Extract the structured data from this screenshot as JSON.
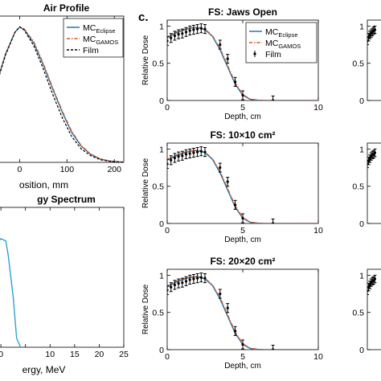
{
  "figure": {
    "panel_label": "c.",
    "colors": {
      "axis": "#000000",
      "eclipse": "#1f77b4",
      "gamos": "#d95319",
      "film": "#000000",
      "spectrum": "#2ea3d1"
    }
  },
  "chart_data": [
    {
      "id": "air-profile",
      "type": "line",
      "title": "Air Profile",
      "xlabel": "osition, mm",
      "ylabel": "",
      "xlim": [
        -50,
        220
      ],
      "ylim": [
        0,
        1.08
      ],
      "xticks": [
        0,
        100,
        200
      ],
      "xtick_labels": [
        "0",
        "100",
        "200"
      ],
      "legend": {
        "placement": "top-right",
        "entries": [
          "MC_Eclipse",
          "MC_GAMOS",
          "Film"
        ]
      },
      "series": [
        {
          "name": "MC_Eclipse",
          "style": "solid",
          "x": [
            -50,
            -30,
            -10,
            0,
            10,
            30,
            50,
            70,
            90,
            110,
            130,
            150,
            170,
            190,
            210,
            220
          ],
          "y": [
            0.57,
            0.8,
            0.96,
            1.0,
            0.98,
            0.88,
            0.72,
            0.54,
            0.37,
            0.22,
            0.12,
            0.06,
            0.025,
            0.01,
            0.004,
            0.002
          ]
        },
        {
          "name": "MC_GAMOS",
          "style": "dashdot",
          "x": [
            -50,
            -30,
            -10,
            0,
            10,
            30,
            50,
            70,
            90,
            110,
            130,
            150,
            170,
            190,
            210,
            220
          ],
          "y": [
            0.57,
            0.8,
            0.96,
            1.0,
            0.985,
            0.89,
            0.73,
            0.55,
            0.38,
            0.23,
            0.125,
            0.062,
            0.026,
            0.01,
            0.004,
            0.002
          ]
        },
        {
          "name": "Film",
          "style": "dashed",
          "x": [
            -50,
            -30,
            -10,
            0,
            10,
            30,
            50,
            70,
            90,
            110,
            130,
            150,
            170,
            190,
            210,
            220
          ],
          "y": [
            0.56,
            0.79,
            0.96,
            1.0,
            0.975,
            0.86,
            0.69,
            0.5,
            0.33,
            0.19,
            0.1,
            0.05,
            0.02,
            0.008,
            0.003,
            0.002
          ]
        }
      ]
    },
    {
      "id": "energy-spectrum",
      "type": "line",
      "title": "gy Spectrum",
      "xlabel": "ergy, MeV",
      "ylabel": "",
      "xlim": [
        -1,
        25
      ],
      "ylim": [
        0,
        1.25
      ],
      "xticks": [
        0,
        5,
        10,
        15,
        20,
        25
      ],
      "xtick_labels": [
        "0",
        "",
        "10",
        "15",
        "20",
        "25"
      ],
      "series": [
        {
          "name": "",
          "x": [
            -1,
            0,
            1,
            1.5,
            2.5,
            3.2,
            4.0
          ],
          "y": [
            0.92,
            0.97,
            0.95,
            0.82,
            0.45,
            0.08,
            0.0
          ]
        }
      ]
    },
    {
      "id": "fs-jaws-open",
      "type": "line",
      "title": "FS: Jaws Open",
      "xlabel": "Depth, cm",
      "ylabel": "Relative Dose",
      "xlim": [
        0,
        10
      ],
      "ylim": [
        0,
        1.08
      ],
      "xticks": [
        0,
        5,
        10
      ],
      "yticks": [
        0,
        0.5,
        1
      ],
      "ytick_labels": [
        "0",
        "0.5",
        "1"
      ],
      "legend": {
        "placement": "top-right",
        "entries": [
          "MC_Eclipse",
          "MC_GAMOS",
          "Film"
        ]
      },
      "series": [
        {
          "name": "MC_Eclipse",
          "x": [
            0,
            0.5,
            1,
            1.5,
            2,
            2.5,
            3,
            3.5,
            4,
            4.5,
            5,
            5.5,
            6,
            6.5,
            7,
            7.5,
            10
          ],
          "y": [
            0.84,
            0.9,
            0.94,
            0.97,
            0.98,
            0.95,
            0.86,
            0.68,
            0.45,
            0.22,
            0.07,
            0.015,
            0.004,
            0.001,
            0.0,
            0.0,
            0.0
          ]
        },
        {
          "name": "MC_GAMOS",
          "x": [
            0,
            0.5,
            1,
            1.5,
            2,
            2.5,
            3,
            3.5,
            4,
            4.5,
            5,
            5.5,
            6,
            6.5,
            7,
            7.5,
            10
          ],
          "y": [
            0.85,
            0.91,
            0.95,
            0.975,
            0.985,
            0.96,
            0.87,
            0.7,
            0.47,
            0.24,
            0.08,
            0.02,
            0.005,
            0.001,
            0.0,
            0.0,
            0.0
          ]
        },
        {
          "name": "Film",
          "x": [
            0,
            0.25,
            0.5,
            0.75,
            1,
            1.25,
            1.5,
            1.75,
            2,
            2.25,
            2.5,
            3.5,
            4,
            4.5,
            5,
            7
          ],
          "y": [
            0.8,
            0.84,
            0.87,
            0.89,
            0.9,
            0.92,
            0.94,
            0.95,
            0.96,
            0.97,
            0.96,
            0.75,
            0.56,
            0.25,
            0.07,
            0.0
          ],
          "err": 0.06
        }
      ]
    },
    {
      "id": "fs-10x10",
      "type": "line",
      "title": "FS: 10×10 cm²",
      "xlabel": "Depth, cm",
      "ylabel": "Relative Dose",
      "xlim": [
        0,
        10
      ],
      "ylim": [
        0,
        1.08
      ],
      "xticks": [
        0,
        5,
        10
      ],
      "yticks": [
        0,
        0.5,
        1
      ],
      "ytick_labels": [
        "0",
        "0.5",
        "1"
      ],
      "series": [
        {
          "name": "MC_Eclipse",
          "x": [
            0,
            0.5,
            1,
            1.5,
            2,
            2.5,
            3,
            3.5,
            4,
            4.5,
            5,
            5.5,
            6,
            6.5,
            7,
            10
          ],
          "y": [
            0.85,
            0.9,
            0.94,
            0.97,
            0.98,
            0.95,
            0.86,
            0.68,
            0.45,
            0.22,
            0.07,
            0.015,
            0.004,
            0.001,
            0.0,
            0.0
          ]
        },
        {
          "name": "MC_GAMOS",
          "x": [
            0,
            0.5,
            1,
            1.5,
            2,
            2.5,
            3,
            3.5,
            4,
            4.5,
            5,
            5.5,
            6,
            6.5,
            7,
            10
          ],
          "y": [
            0.86,
            0.91,
            0.95,
            0.975,
            0.985,
            0.96,
            0.87,
            0.7,
            0.47,
            0.24,
            0.08,
            0.02,
            0.005,
            0.001,
            0.0,
            0.0
          ]
        },
        {
          "name": "Film",
          "x": [
            0,
            0.25,
            0.5,
            0.75,
            1,
            1.25,
            1.5,
            1.75,
            2,
            2.25,
            2.5,
            3.5,
            4,
            4.5,
            5,
            7
          ],
          "y": [
            0.8,
            0.85,
            0.88,
            0.9,
            0.91,
            0.93,
            0.94,
            0.95,
            0.96,
            0.97,
            0.96,
            0.75,
            0.56,
            0.25,
            0.07,
            0.0
          ],
          "err": 0.06
        }
      ]
    },
    {
      "id": "fs-20x20",
      "type": "line",
      "title": "FS: 20×20 cm²",
      "xlabel": "Depth, cm",
      "ylabel": "Relative Dose",
      "xlim": [
        0,
        10
      ],
      "ylim": [
        0,
        1.08
      ],
      "xticks": [
        0,
        5,
        10
      ],
      "yticks": [
        0,
        0.5,
        1
      ],
      "ytick_labels": [
        "0",
        "0.5",
        "1"
      ],
      "series": [
        {
          "name": "MC_Eclipse",
          "x": [
            0,
            0.5,
            1,
            1.5,
            2,
            2.5,
            3,
            3.5,
            4,
            4.5,
            5,
            5.5,
            6,
            6.5,
            7,
            10
          ],
          "y": [
            0.84,
            0.9,
            0.94,
            0.97,
            0.98,
            0.95,
            0.86,
            0.68,
            0.45,
            0.22,
            0.07,
            0.015,
            0.004,
            0.001,
            0.0,
            0.0
          ]
        },
        {
          "name": "MC_GAMOS",
          "x": [
            0,
            0.5,
            1,
            1.5,
            2,
            2.5,
            3,
            3.5,
            4,
            4.5,
            5,
            5.5,
            6,
            6.5,
            7,
            10
          ],
          "y": [
            0.85,
            0.91,
            0.95,
            0.975,
            0.985,
            0.96,
            0.87,
            0.7,
            0.47,
            0.24,
            0.08,
            0.02,
            0.005,
            0.001,
            0.0,
            0.0
          ]
        },
        {
          "name": "Film",
          "x": [
            0,
            0.25,
            0.5,
            0.75,
            1,
            1.25,
            1.5,
            1.75,
            2,
            2.25,
            2.5,
            3.5,
            4,
            4.5,
            5,
            7
          ],
          "y": [
            0.8,
            0.84,
            0.87,
            0.89,
            0.9,
            0.92,
            0.94,
            0.95,
            0.96,
            0.97,
            0.96,
            0.75,
            0.56,
            0.25,
            0.07,
            0.0
          ],
          "err": 0.06
        }
      ]
    },
    {
      "id": "right-top",
      "type": "line",
      "title": "",
      "xlim": [
        0,
        10
      ],
      "ylim": [
        0,
        1.08
      ],
      "yticks": [
        0,
        0.5,
        1
      ],
      "ytick_labels": [
        "0",
        "0.5",
        "1"
      ],
      "series": [
        {
          "name": "Film",
          "x": [
            0,
            0.25,
            0.5,
            0.75,
            1,
            1.25,
            1.5
          ],
          "y": [
            0.8,
            0.85,
            0.88,
            0.9,
            0.92,
            0.94,
            0.95
          ],
          "err": 0.05
        }
      ]
    },
    {
      "id": "right-mid",
      "type": "line",
      "title": "",
      "xlim": [
        0,
        10
      ],
      "ylim": [
        0,
        1.08
      ],
      "yticks": [
        0,
        0.5,
        1
      ],
      "ytick_labels": [
        "0",
        "0.5",
        "1"
      ],
      "series": [
        {
          "name": "Film",
          "x": [
            0,
            0.25,
            0.5,
            0.75,
            1,
            1.25,
            1.5
          ],
          "y": [
            0.8,
            0.84,
            0.87,
            0.9,
            0.92,
            0.93,
            0.95
          ],
          "err": 0.05
        }
      ]
    },
    {
      "id": "right-bot",
      "type": "line",
      "title": "",
      "xlim": [
        0,
        10
      ],
      "ylim": [
        0,
        1.08
      ],
      "yticks": [
        0,
        0.5,
        1
      ],
      "ytick_labels": [
        "0",
        "0.5",
        "1"
      ],
      "series": [
        {
          "name": "Film",
          "x": [
            0,
            0.25,
            0.5,
            0.75,
            1,
            1.25,
            1.5
          ],
          "y": [
            0.79,
            0.84,
            0.87,
            0.9,
            0.92,
            0.93,
            0.95
          ],
          "err": 0.05
        }
      ]
    }
  ]
}
